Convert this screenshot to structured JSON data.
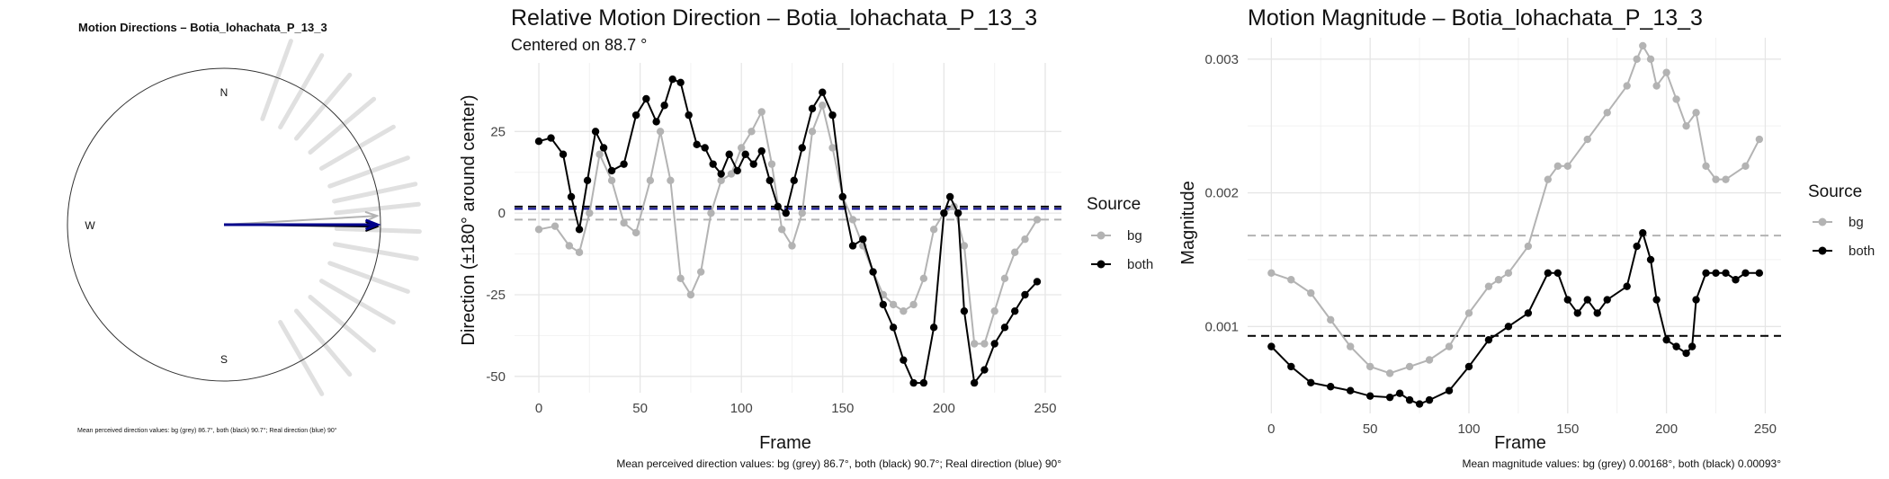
{
  "chart_data": [
    {
      "type": "compass",
      "title": "Motion Directions – Botia_lohachata_P_13_3",
      "directions": [
        "N",
        "W",
        "S"
      ],
      "caption": "Mean perceived direction values: bg (grey) 86.7°, both (black) 90.7°; Real direction (blue) 90°",
      "bg_spokes_deg": [
        20,
        30,
        40,
        50,
        60,
        70,
        78,
        84,
        92,
        100,
        110,
        120,
        130,
        140,
        150
      ],
      "mean_bg_deg": 86.7,
      "mean_both_deg": 90.7,
      "real_deg": 90,
      "colors": {
        "bg": "#b3b3b3",
        "both": "#000000",
        "real": "#00008b",
        "spoke": "#e0e0e0"
      }
    },
    {
      "type": "line",
      "title": "Relative Motion Direction – Botia_lohachata_P_13_3",
      "subtitle": "Centered on  88.7 °",
      "xlabel": "Frame",
      "ylabel": "Direction (±180° around center)",
      "xlim": [
        -12,
        258
      ],
      "ylim": [
        -55,
        46
      ],
      "xticks": [
        0,
        50,
        100,
        150,
        200,
        250
      ],
      "yticks": [
        -50,
        -25,
        0,
        25
      ],
      "legend_title": "Source",
      "legend_position": "right",
      "caption": "Mean perceived direction values: bg (grey) 86.7°, both (black) 90.7°; Real direction (blue) 90°",
      "hlines": [
        {
          "y": -2,
          "color": "#b3b3b3"
        },
        {
          "y": 2,
          "color": "#000000"
        },
        {
          "y": 1.3,
          "color": "#00008b"
        }
      ],
      "series": [
        {
          "name": "bg",
          "color": "#b3b3b3",
          "x": [
            0,
            8,
            15,
            20,
            25,
            30,
            36,
            42,
            48,
            55,
            60,
            65,
            70,
            75,
            80,
            85,
            90,
            95,
            100,
            105,
            110,
            115,
            120,
            125,
            130,
            135,
            140,
            145,
            150,
            155,
            160,
            165,
            170,
            175,
            180,
            185,
            190,
            195,
            200,
            205,
            210,
            215,
            220,
            225,
            230,
            235,
            240,
            246
          ],
          "y": [
            -5,
            -4,
            -10,
            -12,
            0,
            18,
            10,
            -3,
            -6,
            10,
            25,
            10,
            -20,
            -25,
            -18,
            0,
            10,
            12,
            20,
            25,
            31,
            15,
            -5,
            -10,
            0,
            25,
            33,
            20,
            5,
            -2,
            -10,
            -18,
            -25,
            -28,
            -30,
            -28,
            -20,
            -5,
            0,
            2,
            -10,
            -40,
            -40,
            -30,
            -20,
            -12,
            -8,
            -2
          ]
        },
        {
          "name": "both",
          "color": "#000000",
          "x": [
            0,
            6,
            12,
            16,
            20,
            24,
            28,
            32,
            36,
            42,
            48,
            53,
            58,
            62,
            66,
            70,
            74,
            78,
            82,
            86,
            90,
            94,
            98,
            102,
            106,
            110,
            114,
            118,
            122,
            126,
            130,
            135,
            140,
            145,
            150,
            155,
            160,
            165,
            170,
            175,
            180,
            185,
            190,
            195,
            200,
            203,
            207,
            210,
            215,
            220,
            225,
            230,
            235,
            240,
            246
          ],
          "y": [
            22,
            23,
            18,
            5,
            -5,
            10,
            25,
            20,
            13,
            15,
            30,
            35,
            28,
            33,
            41,
            40,
            30,
            21,
            20,
            15,
            12,
            18,
            13,
            18,
            15,
            19,
            10,
            2,
            0,
            10,
            20,
            32,
            37,
            30,
            5,
            -10,
            -8,
            -18,
            -28,
            -35,
            -45,
            -52,
            -52,
            -35,
            0,
            5,
            0,
            -30,
            -52,
            -48,
            -40,
            -35,
            -30,
            -25,
            -21
          ]
        }
      ]
    },
    {
      "type": "line",
      "title": "Motion Magnitude – Botia_lohachata_P_13_3",
      "xlabel": "Frame",
      "ylabel": "Magnitude",
      "xlim": [
        -12,
        258
      ],
      "ylim": [
        0.00035,
        0.00316
      ],
      "xticks": [
        0,
        50,
        100,
        150,
        200,
        250
      ],
      "yticks": [
        0.001,
        0.002,
        0.003
      ],
      "ytick_labels": [
        "0.001",
        "0.002",
        "0.003"
      ],
      "legend_title": "Source",
      "legend_position": "right",
      "caption": "Mean magnitude values: bg (grey) 0.00168°, both (black) 0.00093°",
      "hlines": [
        {
          "y": 0.00168,
          "color": "#b3b3b3"
        },
        {
          "y": 0.00093,
          "color": "#000000"
        }
      ],
      "series": [
        {
          "name": "bg",
          "color": "#b3b3b3",
          "x": [
            0,
            10,
            20,
            30,
            40,
            50,
            60,
            70,
            80,
            90,
            100,
            110,
            115,
            120,
            130,
            140,
            145,
            150,
            160,
            170,
            180,
            185,
            188,
            192,
            195,
            200,
            205,
            210,
            215,
            220,
            225,
            230,
            240,
            247
          ],
          "y": [
            0.0014,
            0.00135,
            0.00125,
            0.00105,
            0.00085,
            0.0007,
            0.00065,
            0.0007,
            0.00075,
            0.00085,
            0.0011,
            0.0013,
            0.00135,
            0.0014,
            0.0016,
            0.0021,
            0.0022,
            0.0022,
            0.0024,
            0.0026,
            0.0028,
            0.003,
            0.0031,
            0.003,
            0.0028,
            0.0029,
            0.0027,
            0.0025,
            0.0026,
            0.0022,
            0.0021,
            0.0021,
            0.0022,
            0.0024
          ]
        },
        {
          "name": "both",
          "color": "#000000",
          "x": [
            0,
            10,
            20,
            30,
            40,
            50,
            60,
            65,
            70,
            75,
            80,
            90,
            100,
            110,
            120,
            130,
            140,
            145,
            150,
            155,
            160,
            165,
            170,
            180,
            185,
            188,
            192,
            195,
            200,
            205,
            210,
            213,
            215,
            220,
            225,
            230,
            235,
            240,
            247
          ],
          "y": [
            0.00085,
            0.0007,
            0.00058,
            0.00055,
            0.00052,
            0.00048,
            0.00047,
            0.0005,
            0.00045,
            0.00042,
            0.00045,
            0.00052,
            0.0007,
            0.0009,
            0.001,
            0.0011,
            0.0014,
            0.0014,
            0.0012,
            0.0011,
            0.0012,
            0.0011,
            0.0012,
            0.0013,
            0.0016,
            0.0017,
            0.0015,
            0.0012,
            0.0009,
            0.00085,
            0.0008,
            0.00085,
            0.0012,
            0.0014,
            0.0014,
            0.0014,
            0.00135,
            0.0014,
            0.0014
          ]
        }
      ]
    }
  ]
}
